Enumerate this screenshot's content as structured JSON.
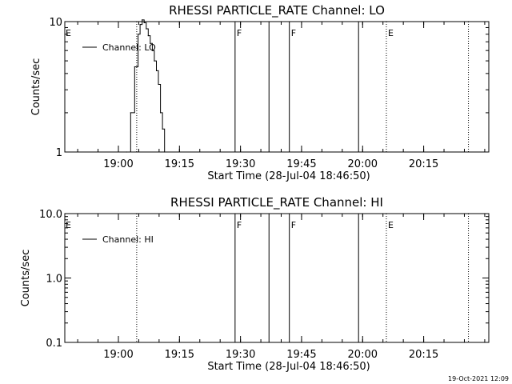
{
  "chart_data": [
    {
      "type": "line",
      "title": "RHESSI PARTICLE_RATE Channel: LO",
      "xlabel": "Start Time (28-Jul-04 18:46:50)",
      "ylabel": "Counts/sec",
      "yscale": "log",
      "ylim": [
        1,
        10
      ],
      "y_ticks": [
        "1",
        "10"
      ],
      "xlim": [
        "18:46:50",
        "20:31:00"
      ],
      "x_ticks": [
        "19:00",
        "19:15",
        "19:30",
        "19:45",
        "20:00",
        "20:15"
      ],
      "legend": {
        "placement": "top-left",
        "entries": [
          "Channel: LO"
        ]
      },
      "series": [
        {
          "name": "Channel: LO",
          "x": [
            "19:02:00",
            "19:03:00",
            "19:04:00",
            "19:04:50",
            "19:05:20",
            "19:05:50",
            "19:06:20",
            "19:06:50",
            "19:07:20",
            "19:07:50",
            "19:08:20",
            "19:08:50",
            "19:09:20",
            "19:09:50",
            "19:10:20",
            "19:10:50",
            "19:11:20"
          ],
          "y": [
            1.0,
            2.0,
            4.5,
            8.0,
            9.5,
            10.3,
            9.8,
            8.8,
            7.8,
            6.8,
            6.0,
            5.0,
            4.2,
            3.3,
            2.0,
            1.5,
            1.0
          ]
        }
      ],
      "vertical_lines": [
        {
          "time": "19:04:30",
          "style": "dotted",
          "label": ""
        },
        {
          "time": "19:28:40",
          "style": "solid",
          "label": "F"
        },
        {
          "time": "19:37:00",
          "style": "solid",
          "label": ""
        },
        {
          "time": "19:42:00",
          "style": "solid",
          "label": "F"
        },
        {
          "time": "19:59:00",
          "style": "solid",
          "label": ""
        },
        {
          "time": "20:05:50",
          "style": "dotted",
          "label": "E"
        },
        {
          "time": "20:26:00",
          "style": "dotted",
          "label": ""
        }
      ],
      "corner_label": "E"
    },
    {
      "type": "line",
      "title": "RHESSI PARTICLE_RATE Channel: HI",
      "xlabel": "Start Time (28-Jul-04 18:46:50)",
      "ylabel": "Counts/sec",
      "yscale": "log",
      "ylim": [
        0.1,
        10
      ],
      "y_ticks": [
        "0.1",
        "1.0",
        "10.0"
      ],
      "xlim": [
        "18:46:50",
        "20:31:00"
      ],
      "x_ticks": [
        "19:00",
        "19:15",
        "19:30",
        "19:45",
        "20:00",
        "20:15"
      ],
      "legend": {
        "placement": "top-left",
        "entries": [
          "Channel: HI"
        ]
      },
      "series": [
        {
          "name": "Channel: HI",
          "x": [],
          "y": []
        }
      ],
      "vertical_lines": [
        {
          "time": "19:04:30",
          "style": "dotted",
          "label": ""
        },
        {
          "time": "19:28:40",
          "style": "solid",
          "label": "F"
        },
        {
          "time": "19:37:00",
          "style": "solid",
          "label": ""
        },
        {
          "time": "19:42:00",
          "style": "solid",
          "label": "F"
        },
        {
          "time": "19:59:00",
          "style": "solid",
          "label": ""
        },
        {
          "time": "20:05:50",
          "style": "dotted",
          "label": "E"
        },
        {
          "time": "20:26:00",
          "style": "dotted",
          "label": ""
        }
      ],
      "corner_label": "E"
    }
  ],
  "footer": {
    "timestamp": "19-Oct-2021 12:09"
  }
}
